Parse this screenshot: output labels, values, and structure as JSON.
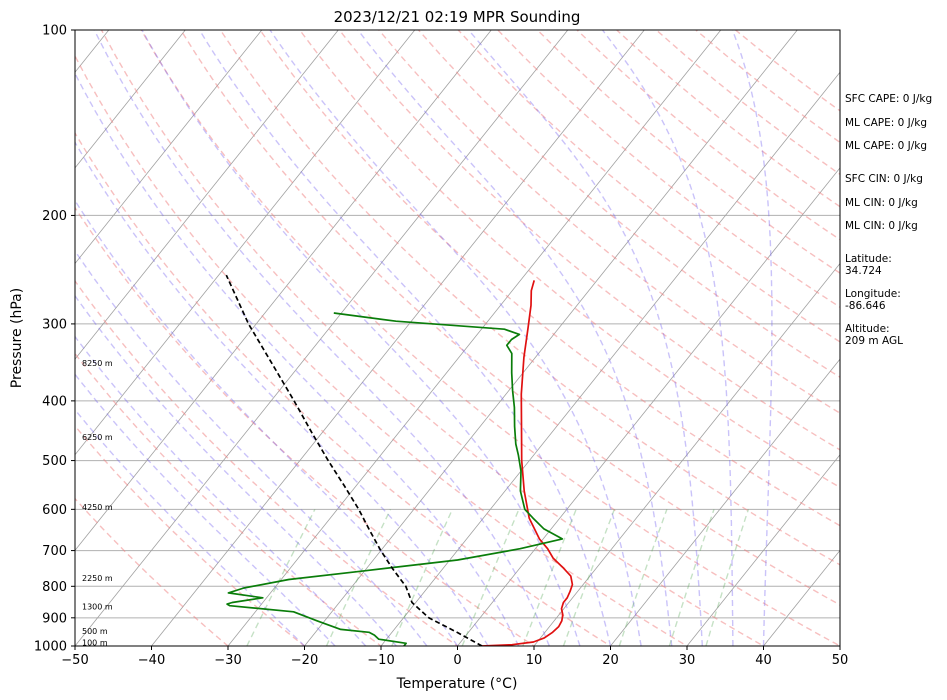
{
  "chart_data": {
    "type": "line",
    "title": "2023/12/21 02:19 MPR Sounding",
    "xlabel": "Temperature (°C)",
    "ylabel": "Pressure (hPa)",
    "xlim": [
      -50,
      50
    ],
    "ylim": [
      1000,
      100
    ],
    "y_scale": "log",
    "x_ticks": [
      "−50",
      "−40",
      "−30",
      "−20",
      "−10",
      "0",
      "10",
      "20",
      "30",
      "40",
      "50"
    ],
    "y_ticks": [
      "100",
      "200",
      "300",
      "400",
      "500",
      "600",
      "700",
      "800",
      "900",
      "1000"
    ],
    "grid": true,
    "skew": true,
    "series": [
      {
        "role": "temperature",
        "color": "#e01010",
        "points": [
          [
            3.2,
            1000
          ],
          [
            7,
            995
          ],
          [
            9.5,
            985
          ],
          [
            10.5,
            970
          ],
          [
            11,
            950
          ],
          [
            11.2,
            930
          ],
          [
            11,
            910
          ],
          [
            10.5,
            890
          ],
          [
            9.7,
            870
          ],
          [
            9.3,
            850
          ],
          [
            9.3,
            835
          ],
          [
            9,
            815
          ],
          [
            8.6,
            795
          ],
          [
            7.5,
            770
          ],
          [
            5.5,
            745
          ],
          [
            3.3,
            720
          ],
          [
            1.6,
            695
          ],
          [
            -0.5,
            670
          ],
          [
            -4,
            620
          ],
          [
            -7.5,
            560
          ],
          [
            -11,
            500
          ],
          [
            -14.6,
            440
          ],
          [
            -18,
            390
          ],
          [
            -21.5,
            340
          ],
          [
            -24,
            305
          ],
          [
            -26,
            280
          ],
          [
            -27.5,
            265
          ],
          [
            -28.2,
            255
          ]
        ]
      },
      {
        "role": "dewpoint",
        "color": "#0a7d0a",
        "points": [
          [
            -7,
            1000
          ],
          [
            -7,
            990
          ],
          [
            -11,
            975
          ],
          [
            -12,
            960
          ],
          [
            -13,
            950
          ],
          [
            -17,
            940
          ],
          [
            -21,
            910
          ],
          [
            -25,
            880
          ],
          [
            -34,
            860
          ],
          [
            -34.5,
            855
          ],
          [
            -34,
            850
          ],
          [
            -30.5,
            835
          ],
          [
            -35.5,
            820
          ],
          [
            -34,
            805
          ],
          [
            -29,
            780
          ],
          [
            -20,
            755
          ],
          [
            -9,
            725
          ],
          [
            -2,
            695
          ],
          [
            2.5,
            670
          ],
          [
            -1,
            645
          ],
          [
            -3.5,
            620
          ],
          [
            -5.5,
            600
          ],
          [
            -8,
            560
          ],
          [
            -10,
            520
          ],
          [
            -12,
            490
          ],
          [
            -13.5,
            470
          ],
          [
            -15.5,
            440
          ],
          [
            -17.5,
            410
          ],
          [
            -19.5,
            385
          ],
          [
            -21.5,
            360
          ],
          [
            -23.5,
            335
          ],
          [
            -25,
            325
          ],
          [
            -25,
            318
          ],
          [
            -24.5,
            312
          ],
          [
            -27,
            306
          ],
          [
            -42,
            297
          ],
          [
            -51,
            288
          ]
        ]
      },
      {
        "role": "parcel",
        "color": "#000000",
        "dashed": true,
        "points": [
          [
            3.2,
            1000
          ],
          [
            -1.5,
            950
          ],
          [
            -6.7,
            900
          ],
          [
            -10.5,
            850
          ],
          [
            -13,
            800
          ],
          [
            -16.5,
            750
          ],
          [
            -20,
            700
          ],
          [
            -23.5,
            650
          ],
          [
            -27.2,
            600
          ],
          [
            -31.5,
            550
          ],
          [
            -36.3,
            500
          ],
          [
            -41.4,
            450
          ],
          [
            -47,
            400
          ],
          [
            -53.5,
            350
          ],
          [
            -61,
            300
          ],
          [
            -69,
            250
          ]
        ]
      }
    ],
    "height_labels": [
      {
        "text": "100 m",
        "p": 987
      },
      {
        "text": "500 m",
        "p": 945
      },
      {
        "text": "1300 m",
        "p": 862
      },
      {
        "text": "2250 m",
        "p": 775
      },
      {
        "text": "4250 m",
        "p": 595
      },
      {
        "text": "6250 m",
        "p": 458
      },
      {
        "text": "8250 m",
        "p": 347
      }
    ]
  },
  "side_panel": {
    "sfc_cape": "SFC CAPE: 0 J/kg",
    "ml_cape_1": "ML CAPE: 0 J/kg",
    "ml_cape_2": "ML CAPE: 0 J/kg",
    "sfc_cin": "SFC CIN: 0 J/kg",
    "ml_cin_1": "ML CIN: 0 J/kg",
    "ml_cin_2": "ML CIN: 0 J/kg",
    "latitude_label": "Latitude:",
    "latitude_value": "34.724",
    "longitude_label": "Longitude:",
    "longitude_value": "-86.646",
    "altitude_label": "Altitude:",
    "altitude_value": "209 m AGL"
  },
  "colors": {
    "isotherm": "#a0a0a0",
    "dry_adiabat": "#f08080",
    "moist_adiabat": "#7a6af0",
    "mixing_ratio": "#5aaa5a"
  }
}
